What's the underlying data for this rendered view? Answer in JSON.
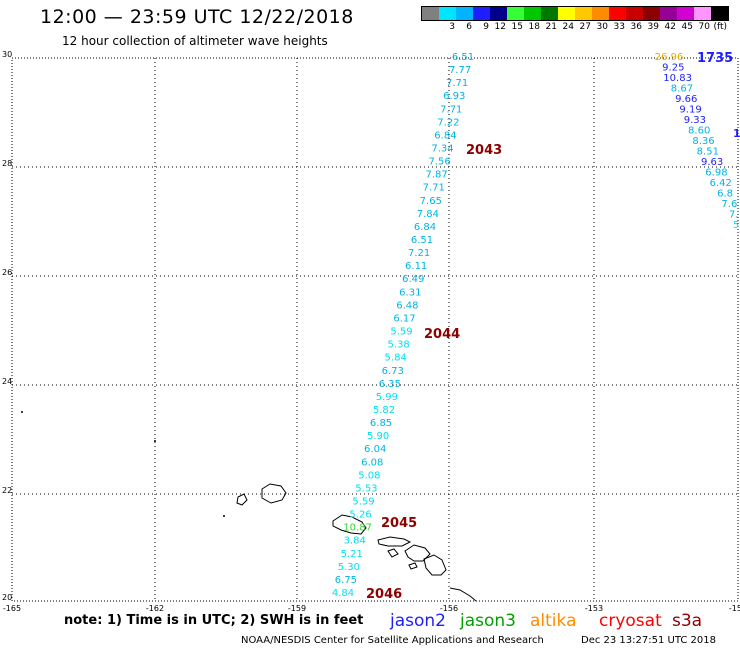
{
  "header": {
    "title": "12:00 — 23:59 UTC 12/22/2018",
    "subtitle": "12 hour collection of altimeter wave heights"
  },
  "scale": {
    "colors": [
      "#808080",
      "#00e5ff",
      "#00b4ff",
      "#1e1eff",
      "#00008c",
      "#37ff37",
      "#00c800",
      "#007800",
      "#ffff00",
      "#ffc800",
      "#ff8c00",
      "#ff0000",
      "#c80000",
      "#8c0000",
      "#960096",
      "#d200d2",
      "#ff96ff",
      "#000000"
    ],
    "labels": [
      "",
      "3",
      "6",
      "9",
      "12",
      "15",
      "18",
      "21",
      "24",
      "27",
      "30",
      "33",
      "36",
      "39",
      "42",
      "45",
      "70",
      "(ft)"
    ]
  },
  "map": {
    "lat_ticks": [
      "30",
      "28",
      "26",
      "24",
      "22",
      "20"
    ],
    "lon_ticks": [
      "-165",
      "-162",
      "-159",
      "-156",
      "-153",
      "-150"
    ],
    "track_labels": [
      {
        "text": "1735",
        "color": "#1e1eff"
      },
      {
        "text": "2043",
        "color": "#8c0000"
      },
      {
        "text": "2044",
        "color": "#8c0000"
      },
      {
        "text": "2045",
        "color": "#8c0000"
      },
      {
        "text": "2046",
        "color": "#8c0000"
      }
    ],
    "track1_values": [
      "6.51",
      "7.77",
      "7.71",
      "6.93",
      "7.71",
      "7.22",
      "6.84",
      "7.34",
      "7.56",
      "7.87",
      "7.71",
      "7.65",
      "7.84",
      "6.84",
      "6.51",
      "7.21",
      "6.11",
      "6.49",
      "6.31",
      "6.48",
      "6.17",
      "5.59",
      "5.38",
      "5.84",
      "6.73",
      "6.35",
      "5.99",
      "5.82",
      "6.85",
      "5.90",
      "6.04",
      "6.08",
      "5.08",
      "5.53",
      "5.59",
      "5.26",
      "10.87",
      "3.84",
      "5.21",
      "5.30",
      "6.75",
      "4.84"
    ],
    "track2_values": [
      "26.96",
      "9.25",
      "10.83",
      "8.67",
      "9.66",
      "9.19",
      "9.33",
      "8.60",
      "8.36",
      "8.51",
      "9.63",
      "6.98",
      "6.42",
      "6.8",
      "7.6",
      "7.",
      "5"
    ],
    "edge_label": "1"
  },
  "legend": {
    "note": "note: 1) Time is in UTC; 2) SWH is in feet",
    "satellites": [
      {
        "name": "jason2",
        "color": "#1e1eff"
      },
      {
        "name": "jason3",
        "color": "#00a000"
      },
      {
        "name": "altika",
        "color": "#ff8c00"
      },
      {
        "name": "cryosat",
        "color": "#ff0000"
      },
      {
        "name": "s3a",
        "color": "#8c0000"
      }
    ]
  },
  "footer": {
    "agency": "NOAA/NESDIS Center for Satellite Applications and Research",
    "timestamp": "Dec 23 13:27:51 UTC 2018"
  }
}
